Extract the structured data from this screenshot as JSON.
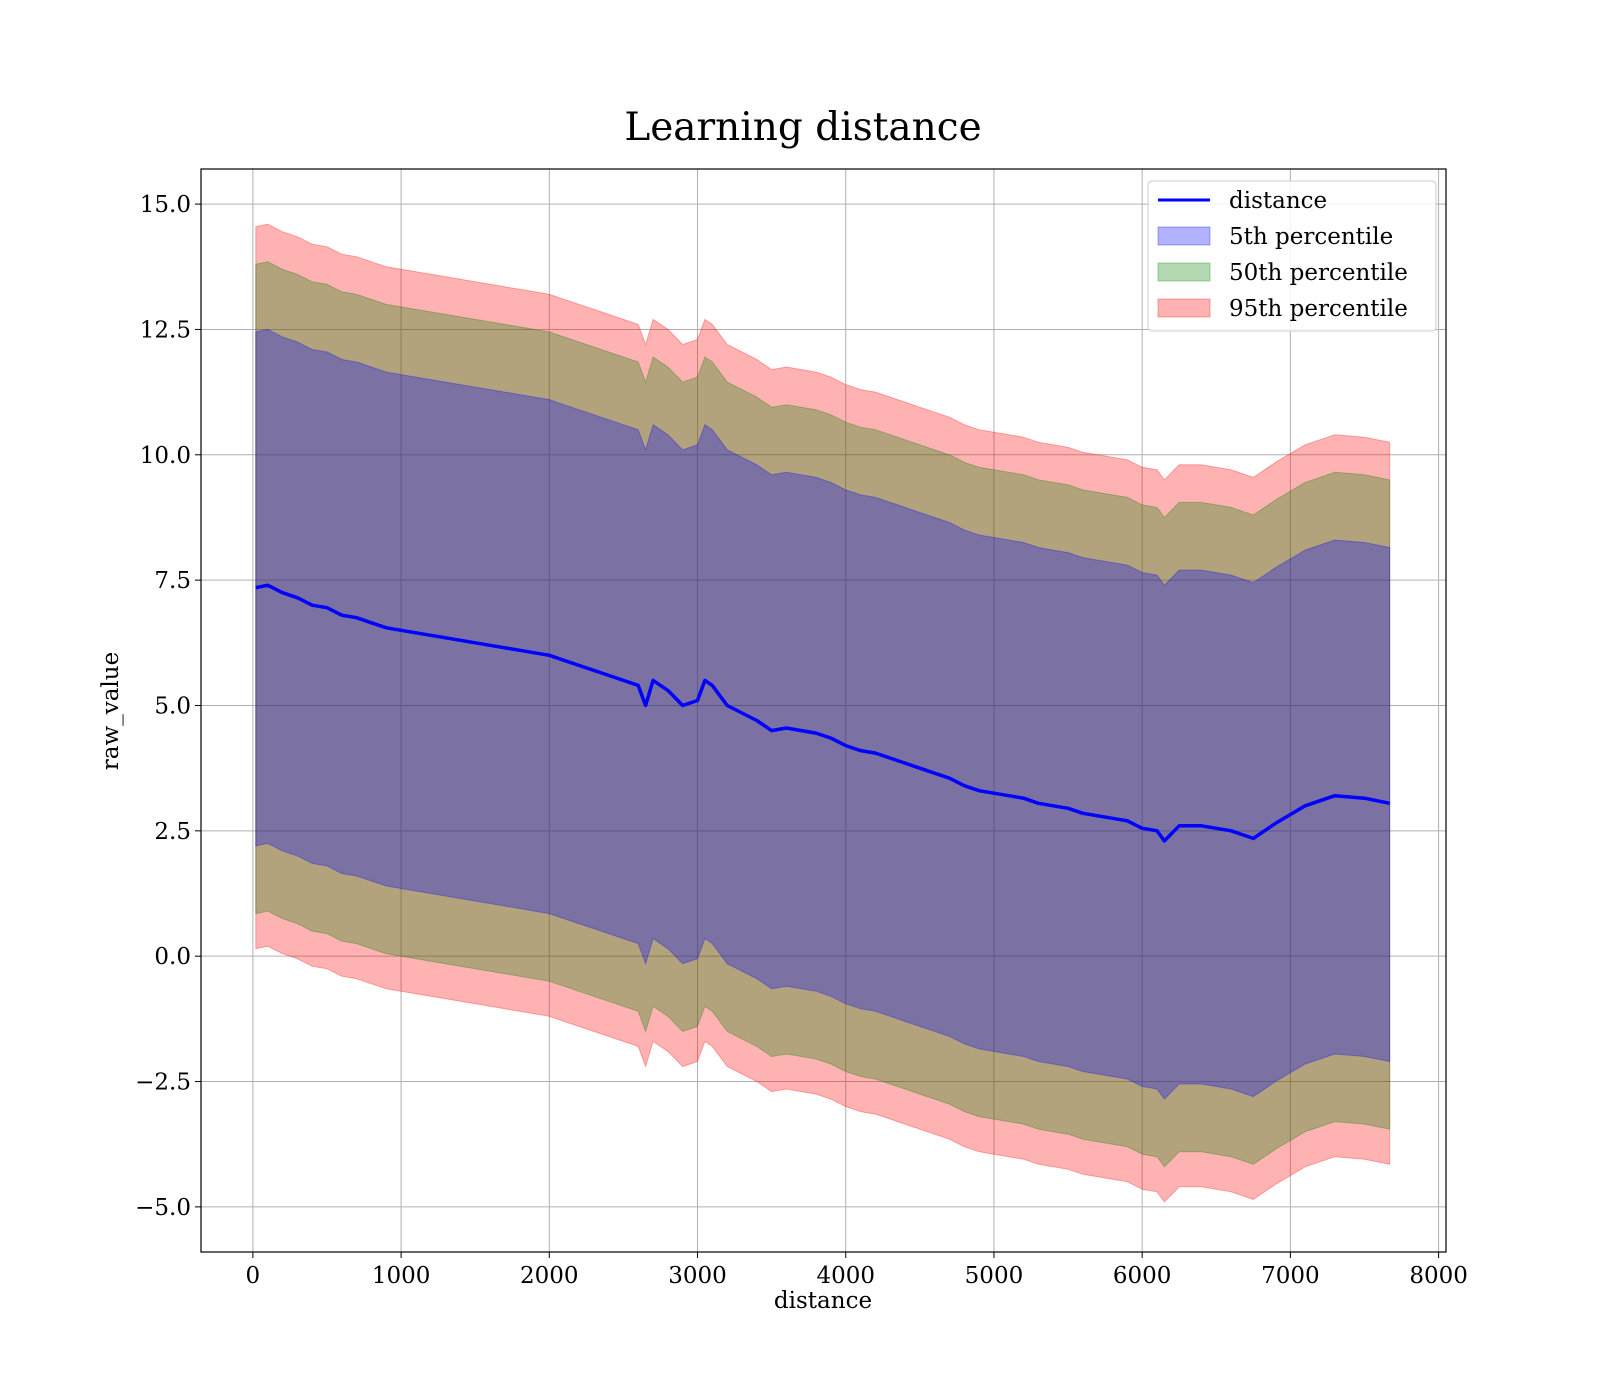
{
  "chart_data": {
    "type": "area",
    "title": "Learning distance",
    "xlabel": "distance",
    "ylabel": "raw_value",
    "xlim": [
      -350,
      8050
    ],
    "ylim": [
      -5.9,
      15.7
    ],
    "x_ticks": [
      0,
      1000,
      2000,
      3000,
      4000,
      5000,
      6000,
      7000,
      8000
    ],
    "y_ticks": [
      -5.0,
      -2.5,
      0.0,
      2.5,
      5.0,
      7.5,
      10.0,
      12.5,
      15.0
    ],
    "x_tick_labels": [
      "0",
      "1000",
      "2000",
      "3000",
      "4000",
      "5000",
      "6000",
      "7000",
      "8000"
    ],
    "y_tick_labels": [
      "−5.0",
      "−2.5",
      "0.0",
      "2.5",
      "5.0",
      "7.5",
      "10.0",
      "12.5",
      "15.0"
    ],
    "grid": true,
    "legend_position": "top-right",
    "x": [
      20,
      100,
      200,
      300,
      400,
      500,
      600,
      700,
      800,
      900,
      1000,
      1100,
      1200,
      1300,
      1400,
      1500,
      1600,
      1700,
      1800,
      1900,
      2000,
      2100,
      2200,
      2300,
      2400,
      2500,
      2600,
      2650,
      2700,
      2800,
      2900,
      3000,
      3050,
      3100,
      3200,
      3300,
      3400,
      3500,
      3600,
      3700,
      3800,
      3900,
      4000,
      4100,
      4200,
      4300,
      4400,
      4500,
      4600,
      4700,
      4800,
      4900,
      5000,
      5100,
      5200,
      5300,
      5400,
      5500,
      5600,
      5700,
      5800,
      5900,
      6000,
      6100,
      6150,
      6250,
      6400,
      6600,
      6750,
      6900,
      7100,
      7300,
      7500,
      7670
    ],
    "distance": [
      7.35,
      7.4,
      7.25,
      7.15,
      7.0,
      6.95,
      6.8,
      6.75,
      6.65,
      6.55,
      6.5,
      6.45,
      6.4,
      6.35,
      6.3,
      6.25,
      6.2,
      6.15,
      6.1,
      6.05,
      6.0,
      5.9,
      5.8,
      5.7,
      5.6,
      5.5,
      5.4,
      5.0,
      5.5,
      5.3,
      5.0,
      5.1,
      5.5,
      5.4,
      5.0,
      4.85,
      4.7,
      4.5,
      4.55,
      4.5,
      4.45,
      4.35,
      4.2,
      4.1,
      4.05,
      3.95,
      3.85,
      3.75,
      3.65,
      3.55,
      3.4,
      3.3,
      3.25,
      3.2,
      3.15,
      3.05,
      3.0,
      2.95,
      2.85,
      2.8,
      2.75,
      2.7,
      2.55,
      2.5,
      2.3,
      2.6,
      2.6,
      2.5,
      2.35,
      2.65,
      3.0,
      3.2,
      3.15,
      3.05
    ],
    "series": [
      {
        "name": "5th percentile",
        "color": "#0000ff",
        "offset_upper": 5.1,
        "offset_lower": 5.15
      },
      {
        "name": "50th percentile",
        "color": "#008000",
        "offset_upper": 6.45,
        "offset_lower": 6.5
      },
      {
        "name": "95th percentile",
        "color": "#ff0000",
        "offset_upper": 7.2,
        "offset_lower": 7.2
      }
    ],
    "line": {
      "name": "distance",
      "color": "#0000ff"
    }
  }
}
